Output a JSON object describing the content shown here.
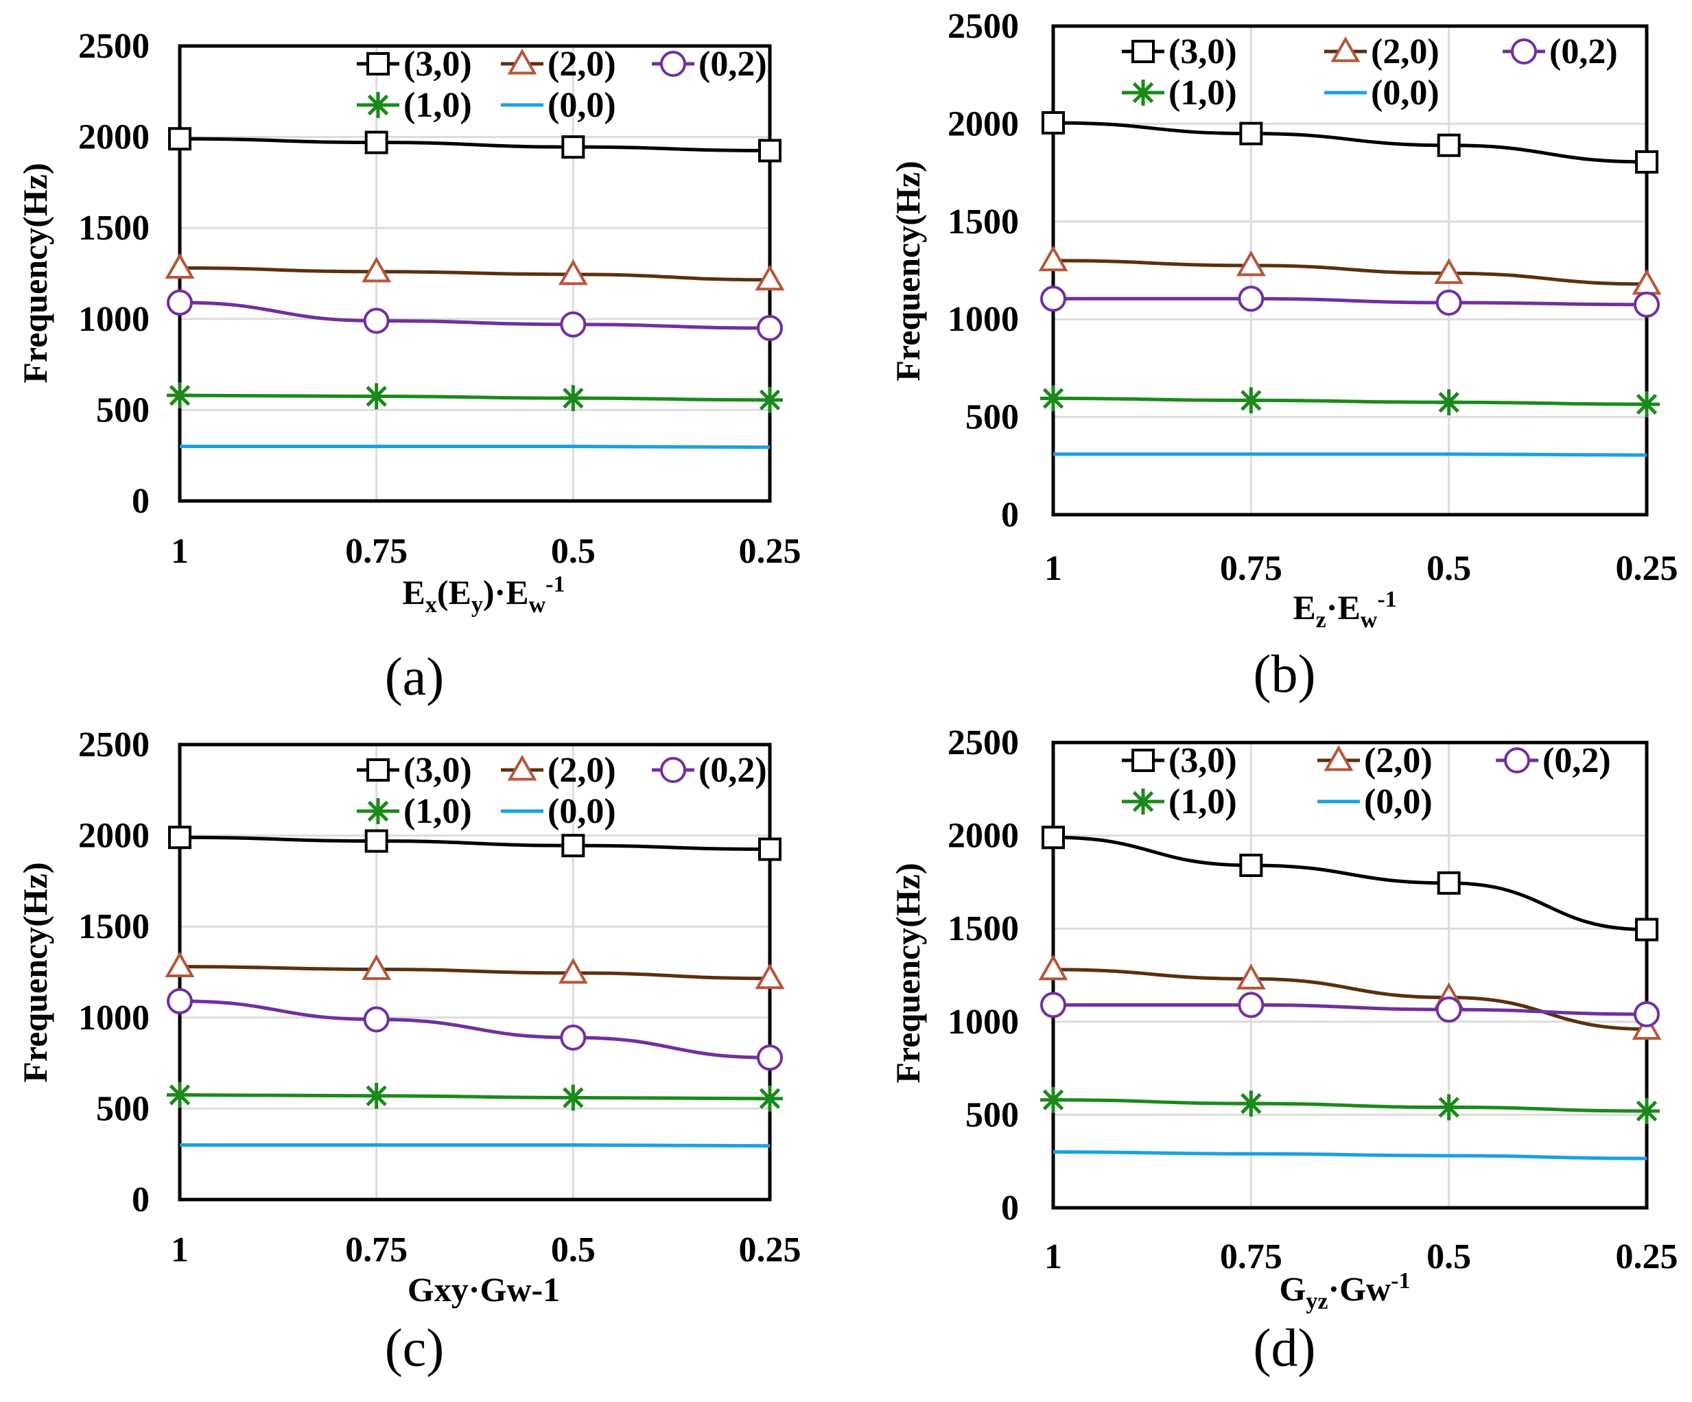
{
  "chart_data": [
    {
      "id": "a",
      "type": "line",
      "panel_label": "(a)",
      "ylabel": "Frequency(Hz)",
      "xlabel": "Ex(Ey)·Ew-1",
      "xlabel_parts": [
        "E",
        "x",
        "(E",
        "y",
        ")·E",
        "w",
        "-1"
      ],
      "categories": [
        "1",
        "0.75",
        "0.5",
        "0.25"
      ],
      "ylim": [
        0,
        2500
      ],
      "yticks": [
        0,
        500,
        1000,
        1500,
        2000,
        2500
      ],
      "grid": true,
      "legend_position": "top-right",
      "series": [
        {
          "name": "(3,0)",
          "values": [
            1990,
            1970,
            1945,
            1925
          ]
        },
        {
          "name": "(2,0)",
          "values": [
            1280,
            1260,
            1245,
            1215
          ]
        },
        {
          "name": "(0,2)",
          "values": [
            1090,
            990,
            970,
            950
          ]
        },
        {
          "name": "(1,0)",
          "values": [
            580,
            575,
            565,
            555
          ]
        },
        {
          "name": "(0,0)",
          "values": [
            300,
            300,
            300,
            295
          ]
        }
      ]
    },
    {
      "id": "b",
      "type": "line",
      "panel_label": "(b)",
      "ylabel": "Frequency(Hz)",
      "xlabel": "Ez·Ew-1",
      "xlabel_parts": [
        "E",
        "z",
        "·E",
        "w",
        "-1"
      ],
      "categories": [
        "1",
        "0.75",
        "0.5",
        "0.25"
      ],
      "ylim": [
        0,
        2500
      ],
      "yticks": [
        0,
        500,
        1000,
        1500,
        2000,
        2500
      ],
      "grid": true,
      "legend_position": "top",
      "series": [
        {
          "name": "(3,0)",
          "values": [
            2005,
            1950,
            1890,
            1805
          ]
        },
        {
          "name": "(2,0)",
          "values": [
            1300,
            1275,
            1235,
            1180
          ]
        },
        {
          "name": "(0,2)",
          "values": [
            1105,
            1105,
            1085,
            1075
          ]
        },
        {
          "name": "(1,0)",
          "values": [
            595,
            585,
            575,
            565
          ]
        },
        {
          "name": "(0,0)",
          "values": [
            310,
            310,
            310,
            305
          ]
        }
      ]
    },
    {
      "id": "c",
      "type": "line",
      "panel_label": "(c)",
      "ylabel": "Frequency(Hz)",
      "xlabel": "Gxy·Gw-1",
      "xlabel_parts": [
        "Gxy·Gw-1"
      ],
      "categories": [
        "1",
        "0.75",
        "0.5",
        "0.25"
      ],
      "ylim": [
        0,
        2500
      ],
      "yticks": [
        0,
        500,
        1000,
        1500,
        2000,
        2500
      ],
      "grid": true,
      "legend_position": "top-right",
      "series": [
        {
          "name": "(3,0)",
          "values": [
            1990,
            1970,
            1945,
            1925
          ]
        },
        {
          "name": "(2,0)",
          "values": [
            1280,
            1265,
            1245,
            1215
          ]
        },
        {
          "name": "(0,2)",
          "values": [
            1090,
            990,
            890,
            780
          ]
        },
        {
          "name": "(1,0)",
          "values": [
            575,
            570,
            560,
            555
          ]
        },
        {
          "name": "(0,0)",
          "values": [
            300,
            300,
            300,
            295
          ]
        }
      ]
    },
    {
      "id": "d",
      "type": "line",
      "panel_label": "(d)",
      "ylabel": "Frequency(Hz)",
      "xlabel": "Gyz·Gw-1",
      "xlabel_parts": [
        "G",
        "yz",
        "·Gw",
        "-1"
      ],
      "categories": [
        "1",
        "0.75",
        "0.5",
        "0.25"
      ],
      "ylim": [
        0,
        2500
      ],
      "yticks": [
        0,
        500,
        1000,
        1500,
        2000,
        2500
      ],
      "grid": true,
      "legend_position": "top",
      "series": [
        {
          "name": "(3,0)",
          "values": [
            1990,
            1840,
            1745,
            1495
          ]
        },
        {
          "name": "(2,0)",
          "values": [
            1280,
            1230,
            1130,
            960
          ]
        },
        {
          "name": "(0,2)",
          "values": [
            1090,
            1090,
            1065,
            1040
          ]
        },
        {
          "name": "(1,0)",
          "values": [
            580,
            560,
            540,
            520
          ]
        },
        {
          "name": "(0,0)",
          "values": [
            300,
            290,
            280,
            265
          ]
        }
      ]
    }
  ],
  "series_styles": {
    "(3,0)": {
      "color": "#000000",
      "marker": "square"
    },
    "(2,0)": {
      "color": "#b5563a",
      "marker": "triangle",
      "line_color": "#5a3010"
    },
    "(0,2)": {
      "color": "#7030a0",
      "marker": "circle"
    },
    "(1,0)": {
      "color": "#1a8a1a",
      "marker": "star"
    },
    "(0,0)": {
      "color": "#1aa0e6",
      "marker": "none"
    }
  }
}
